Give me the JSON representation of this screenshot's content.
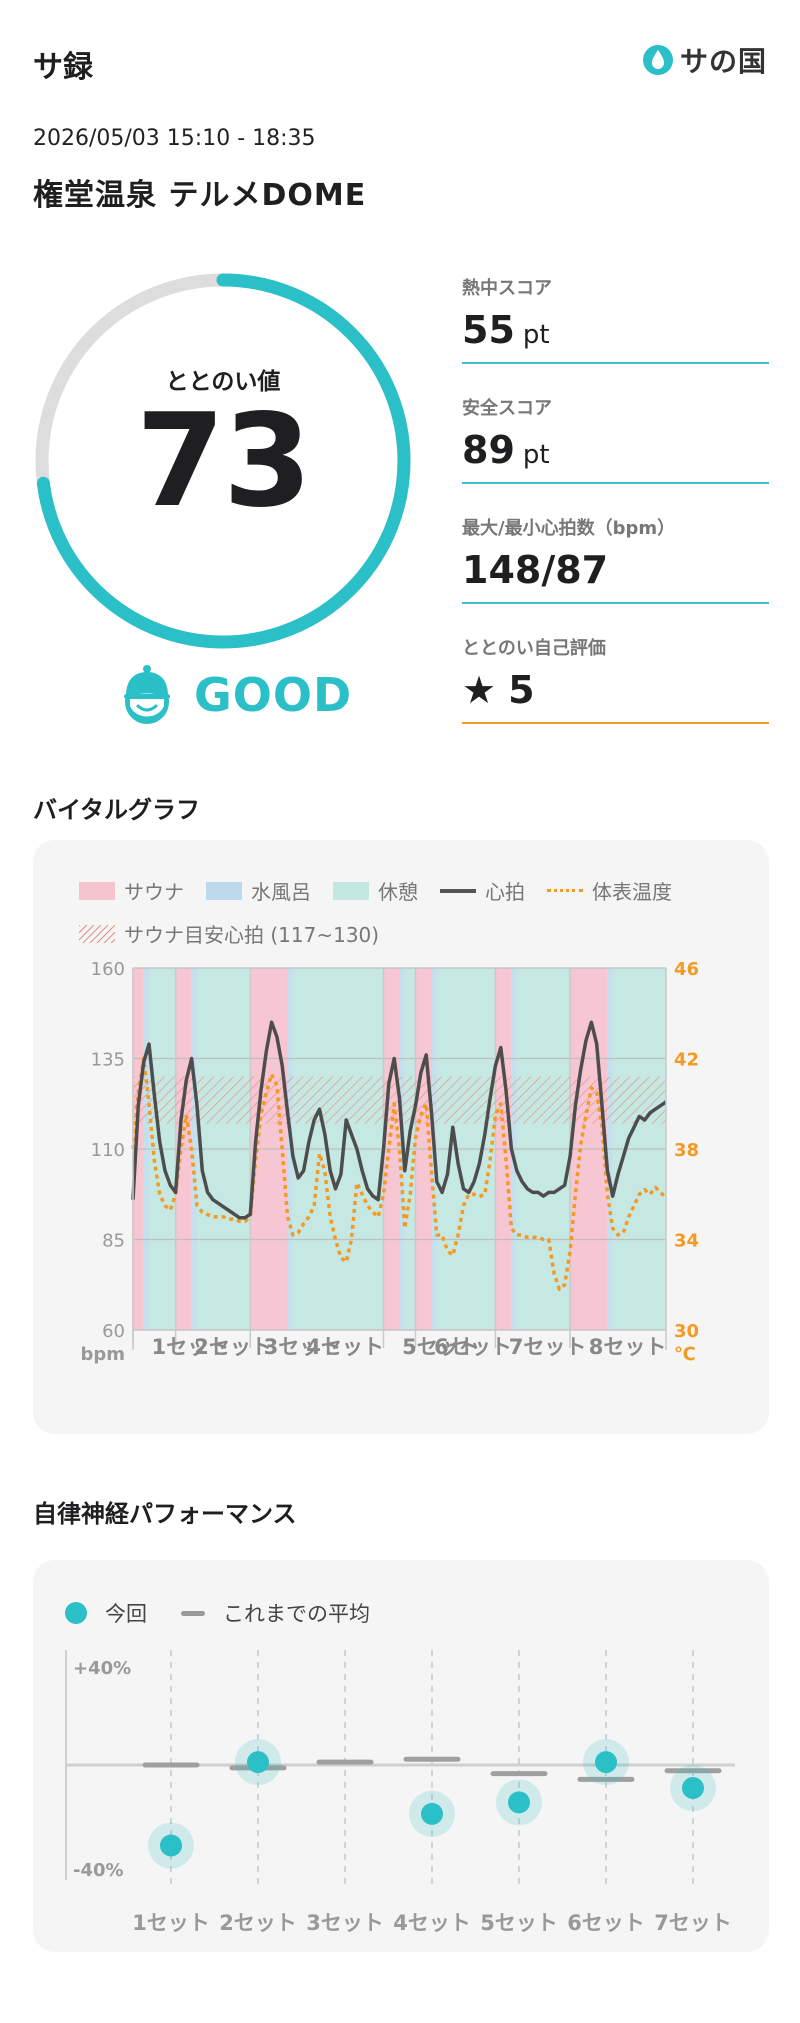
{
  "header": {
    "title": "サ録",
    "logo_text": "サの国",
    "logo_icon": "water-drop-icon"
  },
  "session": {
    "datetime": "2026/05/03 15:10 - 18:35",
    "venue": "権堂温泉 テルメDOME"
  },
  "totonoi": {
    "label": "ととのい値",
    "value": "73",
    "progress": 0.73,
    "status": "GOOD",
    "status_icon": "smiling-sauna-hat-icon"
  },
  "metrics": [
    {
      "label": "熱中スコア",
      "value": "55",
      "unit": "pt"
    },
    {
      "label": "安全スコア",
      "value": "89",
      "unit": "pt"
    },
    {
      "label": "最大/最小心拍数（bpm）",
      "value": "148/87",
      "unit": ""
    },
    {
      "label": "ととのい自己評価",
      "value": "5",
      "unit": "",
      "icon": "star-icon"
    }
  ],
  "vital": {
    "title": "バイタルグラフ",
    "legend": {
      "sauna": "サウナ",
      "cold": "水風呂",
      "rest": "休憩",
      "hr": "心拍",
      "temp": "体表温度",
      "target": "サウナ目安心拍 (117~130)"
    },
    "colors": {
      "sauna": "#f6b5c6",
      "cold": "#b3d8ea",
      "rest": "#b5e3dc",
      "hr": "#4d4d4d",
      "temp": "#f39a24",
      "target": "#e58a78"
    },
    "chart_data": {
      "type": "line",
      "x_range": [
        0,
        100
      ],
      "y_left": {
        "label": "bpm",
        "range": [
          60,
          160
        ],
        "ticks": [
          "160",
          "135",
          "110",
          "85",
          "60"
        ]
      },
      "y_right": {
        "label": "℃",
        "range": [
          30,
          46
        ],
        "ticks": [
          "46",
          "42",
          "38",
          "34",
          "30"
        ]
      },
      "target_band": [
        117,
        130
      ],
      "segments": [
        {
          "type": "sauna",
          "from": 0,
          "to": 2
        },
        {
          "type": "cold",
          "from": 2,
          "to": 3
        },
        {
          "type": "rest",
          "from": 3,
          "to": 8
        },
        {
          "type": "sauna",
          "from": 8,
          "to": 11
        },
        {
          "type": "cold",
          "from": 11,
          "to": 12
        },
        {
          "type": "rest",
          "from": 12,
          "to": 22
        },
        {
          "type": "sauna",
          "from": 22,
          "to": 29
        },
        {
          "type": "cold",
          "from": 29,
          "to": 30
        },
        {
          "type": "rest",
          "from": 30,
          "to": 47
        },
        {
          "type": "sauna",
          "from": 47,
          "to": 50
        },
        {
          "type": "cold",
          "from": 50,
          "to": 51
        },
        {
          "type": "rest",
          "from": 51,
          "to": 53
        },
        {
          "type": "sauna",
          "from": 53,
          "to": 56
        },
        {
          "type": "cold",
          "from": 56,
          "to": 57
        },
        {
          "type": "rest",
          "from": 57,
          "to": 68
        },
        {
          "type": "sauna",
          "from": 68,
          "to": 71
        },
        {
          "type": "cold",
          "from": 71,
          "to": 72
        },
        {
          "type": "rest",
          "from": 72,
          "to": 82
        },
        {
          "type": "sauna",
          "from": 82,
          "to": 89
        },
        {
          "type": "cold",
          "from": 89,
          "to": 90
        },
        {
          "type": "rest",
          "from": 90,
          "to": 100
        }
      ],
      "set_labels": [
        {
          "label": "1セット",
          "x": 2
        },
        {
          "label": "2セット",
          "x": 10
        },
        {
          "label": "3セット",
          "x": 23
        },
        {
          "label": "4セット",
          "x": 31
        },
        {
          "label": "5セット",
          "x": 49
        },
        {
          "label": "6セット",
          "x": 55
        },
        {
          "label": "7セット",
          "x": 69
        },
        {
          "label": "8セット",
          "x": 84
        }
      ],
      "heart_rate": [
        [
          0,
          96
        ],
        [
          1,
          122
        ],
        [
          2,
          134
        ],
        [
          3,
          139
        ],
        [
          4,
          125
        ],
        [
          5,
          112
        ],
        [
          6,
          104
        ],
        [
          7,
          100
        ],
        [
          8,
          98
        ],
        [
          9,
          118
        ],
        [
          10,
          129
        ],
        [
          11,
          135
        ],
        [
          12,
          122
        ],
        [
          13,
          104
        ],
        [
          14,
          98
        ],
        [
          15,
          96
        ],
        [
          16,
          95
        ],
        [
          17,
          94
        ],
        [
          18,
          93
        ],
        [
          19,
          92
        ],
        [
          20,
          91
        ],
        [
          21,
          91
        ],
        [
          22,
          92
        ],
        [
          23,
          112
        ],
        [
          24,
          126
        ],
        [
          25,
          137
        ],
        [
          26,
          145
        ],
        [
          27,
          141
        ],
        [
          28,
          133
        ],
        [
          29,
          120
        ],
        [
          30,
          108
        ],
        [
          31,
          102
        ],
        [
          32,
          104
        ],
        [
          33,
          112
        ],
        [
          34,
          118
        ],
        [
          35,
          121
        ],
        [
          36,
          114
        ],
        [
          37,
          104
        ],
        [
          38,
          99
        ],
        [
          39,
          103
        ],
        [
          40,
          118
        ],
        [
          41,
          114
        ],
        [
          42,
          110
        ],
        [
          43,
          104
        ],
        [
          44,
          99
        ],
        [
          45,
          97
        ],
        [
          46,
          96
        ],
        [
          47,
          110
        ],
        [
          48,
          128
        ],
        [
          49,
          135
        ],
        [
          50,
          124
        ],
        [
          51,
          104
        ],
        [
          52,
          115
        ],
        [
          53,
          122
        ],
        [
          54,
          131
        ],
        [
          55,
          136
        ],
        [
          56,
          120
        ],
        [
          57,
          101
        ],
        [
          58,
          98
        ],
        [
          59,
          103
        ],
        [
          60,
          116
        ],
        [
          61,
          106
        ],
        [
          62,
          99
        ],
        [
          63,
          98
        ],
        [
          64,
          101
        ],
        [
          65,
          106
        ],
        [
          66,
          114
        ],
        [
          67,
          124
        ],
        [
          68,
          133
        ],
        [
          69,
          138
        ],
        [
          70,
          126
        ],
        [
          71,
          110
        ],
        [
          72,
          104
        ],
        [
          73,
          101
        ],
        [
          74,
          99
        ],
        [
          75,
          98
        ],
        [
          76,
          98
        ],
        [
          77,
          97
        ],
        [
          78,
          98
        ],
        [
          79,
          98
        ],
        [
          80,
          99
        ],
        [
          81,
          100
        ],
        [
          82,
          108
        ],
        [
          83,
          122
        ],
        [
          84,
          132
        ],
        [
          85,
          140
        ],
        [
          86,
          145
        ],
        [
          87,
          139
        ],
        [
          88,
          122
        ],
        [
          89,
          104
        ],
        [
          90,
          97
        ],
        [
          91,
          103
        ],
        [
          92,
          108
        ],
        [
          93,
          113
        ],
        [
          94,
          116
        ],
        [
          95,
          119
        ],
        [
          96,
          118
        ],
        [
          97,
          120
        ],
        [
          98,
          121
        ],
        [
          99,
          122
        ],
        [
          100,
          123
        ]
      ],
      "body_temp": [
        [
          0,
          38
        ],
        [
          1,
          40.5
        ],
        [
          2,
          42
        ],
        [
          3,
          40
        ],
        [
          4,
          37.5
        ],
        [
          5,
          36
        ],
        [
          6,
          35.5
        ],
        [
          7,
          35.3
        ],
        [
          8,
          36
        ],
        [
          9,
          38
        ],
        [
          10,
          39.5
        ],
        [
          11,
          38
        ],
        [
          12,
          35.5
        ],
        [
          13,
          35.2
        ],
        [
          14,
          35.1
        ],
        [
          15,
          35
        ],
        [
          16,
          35
        ],
        [
          17,
          35
        ],
        [
          18,
          34.9
        ],
        [
          19,
          34.9
        ],
        [
          20,
          34.8
        ],
        [
          21,
          34.8
        ],
        [
          22,
          35
        ],
        [
          23,
          37.5
        ],
        [
          24,
          39.5
        ],
        [
          25,
          40.5
        ],
        [
          26,
          41.3
        ],
        [
          27,
          40.8
        ],
        [
          28,
          38
        ],
        [
          29,
          35
        ],
        [
          30,
          34.2
        ],
        [
          31,
          34.3
        ],
        [
          32,
          34.7
        ],
        [
          33,
          35
        ],
        [
          34,
          35.5
        ],
        [
          35,
          37.8
        ],
        [
          36,
          37
        ],
        [
          37,
          35
        ],
        [
          38,
          34
        ],
        [
          39,
          33.2
        ],
        [
          40,
          33
        ],
        [
          41,
          34
        ],
        [
          42,
          36.5
        ],
        [
          43,
          36
        ],
        [
          44,
          35.5
        ],
        [
          45,
          35.2
        ],
        [
          46,
          35
        ],
        [
          47,
          36
        ],
        [
          48,
          38
        ],
        [
          49,
          40
        ],
        [
          50,
          38
        ],
        [
          51,
          34.5
        ],
        [
          52,
          36
        ],
        [
          53,
          38.5
        ],
        [
          54,
          39.5
        ],
        [
          55,
          40
        ],
        [
          56,
          37
        ],
        [
          57,
          34.2
        ],
        [
          58,
          34.2
        ],
        [
          59,
          33.5
        ],
        [
          60,
          33.3
        ],
        [
          61,
          34.2
        ],
        [
          62,
          35.5
        ],
        [
          63,
          36
        ],
        [
          64,
          36
        ],
        [
          65,
          35.9
        ],
        [
          66,
          36
        ],
        [
          67,
          37.5
        ],
        [
          68,
          39.5
        ],
        [
          69,
          40
        ],
        [
          70,
          37.5
        ],
        [
          71,
          34.5
        ],
        [
          72,
          34.2
        ],
        [
          73,
          34.2
        ],
        [
          74,
          34.1
        ],
        [
          75,
          34.1
        ],
        [
          76,
          34.1
        ],
        [
          77,
          34
        ],
        [
          78,
          34
        ],
        [
          79,
          32.5
        ],
        [
          80,
          31.8
        ],
        [
          81,
          32
        ],
        [
          82,
          33.5
        ],
        [
          83,
          36
        ],
        [
          84,
          38.2
        ],
        [
          85,
          39.5
        ],
        [
          86,
          40.7
        ],
        [
          87,
          40.5
        ],
        [
          88,
          39
        ],
        [
          89,
          36
        ],
        [
          90,
          34.5
        ],
        [
          91,
          34.2
        ],
        [
          92,
          34.3
        ],
        [
          93,
          35
        ],
        [
          94,
          35.5
        ],
        [
          95,
          36
        ],
        [
          96,
          36.2
        ],
        [
          97,
          36
        ],
        [
          98,
          36.3
        ],
        [
          99,
          36.1
        ],
        [
          100,
          35.8
        ]
      ]
    }
  },
  "ans": {
    "title": "自律神経パフォーマンス",
    "legend": {
      "current": "今回",
      "average": "これまでの平均"
    },
    "colors": {
      "current": "#2bbfc7",
      "average": "#a0a0a0"
    },
    "chart_data": {
      "type": "scatter",
      "y_range": [
        -40,
        40
      ],
      "y_ticks": [
        "+40%",
        "-40%"
      ],
      "categories": [
        "1セット",
        "2セット",
        "3セット",
        "4セット",
        "5セット",
        "6セット",
        "7セット"
      ],
      "series": [
        {
          "name": "今回",
          "values": [
            -28,
            1,
            null,
            -17,
            -13,
            1,
            -8
          ]
        },
        {
          "name": "これまでの平均",
          "values": [
            0,
            -1,
            1,
            2,
            -3,
            -5,
            -2
          ]
        }
      ]
    }
  }
}
